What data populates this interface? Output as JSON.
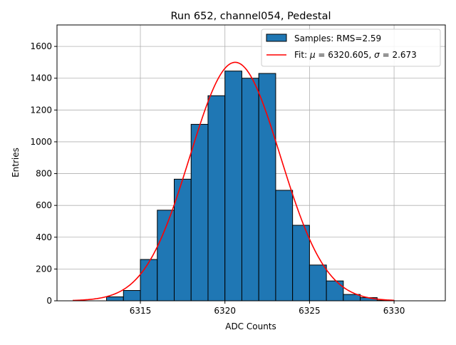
{
  "chart_data": {
    "type": "bar",
    "title": "Run 652, channel054, Pedestal",
    "xlabel": "ADC Counts",
    "ylabel": "Entries",
    "xlim": [
      6310.07,
      6333.03
    ],
    "ylim": [
      0,
      1735
    ],
    "xticks": [
      6315,
      6320,
      6325,
      6330
    ],
    "yticks": [
      0,
      200,
      400,
      600,
      800,
      1000,
      1200,
      1400,
      1600
    ],
    "grid": true,
    "legend_placement": "top-right",
    "histogram": {
      "name": "Samples: RMS=2.59",
      "color": "#1f77b4",
      "bin_edges": [
        6313,
        6314,
        6315,
        6316,
        6317,
        6318,
        6319,
        6320,
        6321,
        6322,
        6323,
        6324,
        6325,
        6326,
        6327,
        6328,
        6329,
        6330
      ],
      "counts": [
        25,
        65,
        260,
        570,
        765,
        1110,
        1290,
        1445,
        1400,
        1430,
        695,
        475,
        225,
        125,
        40,
        20,
        3
      ]
    },
    "fit": {
      "name_prefix": "Fit: ",
      "name_mu": "μ",
      "name_mid": " = 6320.605, ",
      "name_sigma": "σ",
      "name_suffix": " = 2.673",
      "color": "#ff0000",
      "amplitude": 1500,
      "mu": 6320.605,
      "sigma": 2.673,
      "x_range": [
        6311,
        6330
      ]
    }
  }
}
